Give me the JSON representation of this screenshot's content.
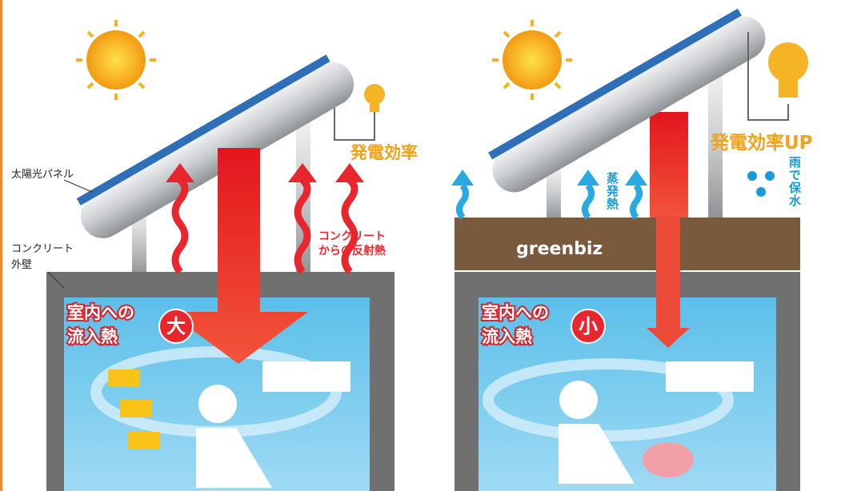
{
  "left": {
    "panel_label": "太陽光パネル",
    "wall_label": [
      "コンクリート",
      "外壁"
    ],
    "efficiency": "発電効率",
    "reflect_label": [
      "コンクリート",
      "からの反射熱"
    ],
    "inflow_label": [
      "室内への",
      "流入熱"
    ],
    "inflow_size": "大"
  },
  "right": {
    "efficiency": "発電効率UP",
    "evaporation": "蒸発熱",
    "rain": "雨で保水",
    "brand": "greenbiz",
    "inflow_label": [
      "室内への",
      "流入熱"
    ],
    "inflow_size": "小"
  }
}
